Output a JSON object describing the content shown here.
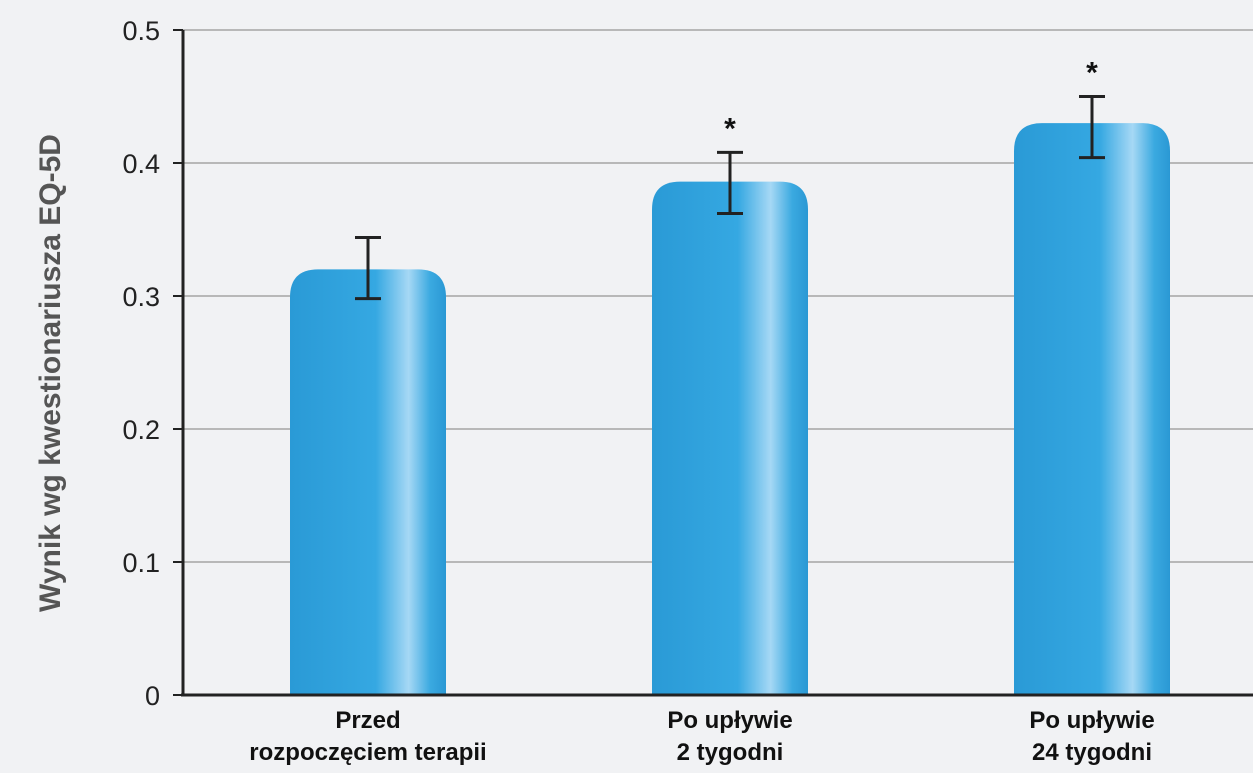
{
  "chart_data": {
    "type": "bar",
    "ylabel": "Wynik wg kwestionariusza EQ-5D",
    "xlabel": "",
    "ylim": [
      0,
      0.5
    ],
    "y_ticks": [
      "0",
      "0.1",
      "0.2",
      "0.3",
      "0.4",
      "0.5"
    ],
    "y_tick_values": [
      0,
      0.1,
      0.2,
      0.3,
      0.4,
      0.5
    ],
    "grid": true,
    "categories": [
      [
        "Przed",
        "rozpoczęciem terapii"
      ],
      [
        "Po upływie",
        "2 tygodni"
      ],
      [
        "Po upływie",
        "24 tygodni"
      ]
    ],
    "values": [
      0.32,
      0.386,
      0.43
    ],
    "error_low": [
      0.298,
      0.362,
      0.404
    ],
    "error_high": [
      0.344,
      0.408,
      0.45
    ],
    "significance": [
      "",
      "*",
      "*"
    ],
    "colors": {
      "bar": "#2fa4dd",
      "bar_highlight": "#9ed4f3",
      "grid": "#b8b8b8",
      "axis": "#222222",
      "error": "#222222"
    }
  }
}
